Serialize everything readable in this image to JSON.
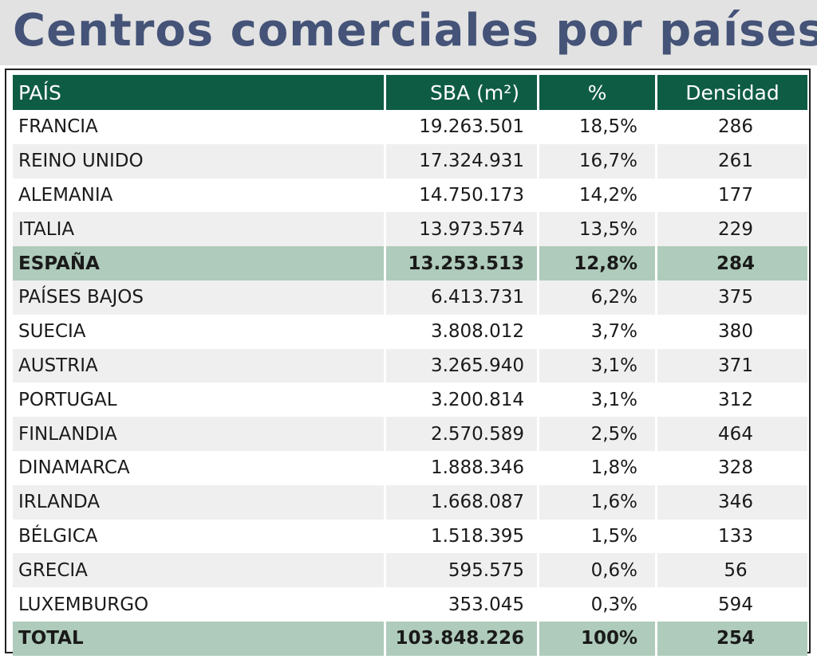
{
  "title": "Centros comerciales por países",
  "chart_data": {
    "type": "table",
    "columns": [
      "PAÍS",
      "SBA (m²)",
      "%",
      "Densidad"
    ],
    "rows": [
      {
        "pais": "FRANCIA",
        "sba": "19.263.501",
        "pct": "18,5%",
        "densidad": "286"
      },
      {
        "pais": "REINO UNIDO",
        "sba": "17.324.931",
        "pct": "16,7%",
        "densidad": "261"
      },
      {
        "pais": "ALEMANIA",
        "sba": "14.750.173",
        "pct": "14,2%",
        "densidad": "177"
      },
      {
        "pais": "ITALIA",
        "sba": "13.973.574",
        "pct": "13,5%",
        "densidad": "229"
      },
      {
        "pais": "ESPAÑA",
        "sba": "13.253.513",
        "pct": "12,8%",
        "densidad": "284",
        "highlight": true
      },
      {
        "pais": "PAÍSES BAJOS",
        "sba": "6.413.731",
        "pct": "6,2%",
        "densidad": "375"
      },
      {
        "pais": "SUECIA",
        "sba": "3.808.012",
        "pct": "3,7%",
        "densidad": "380"
      },
      {
        "pais": "AUSTRIA",
        "sba": "3.265.940",
        "pct": "3,1%",
        "densidad": "371"
      },
      {
        "pais": "PORTUGAL",
        "sba": "3.200.814",
        "pct": "3,1%",
        "densidad": "312"
      },
      {
        "pais": "FINLANDIA",
        "sba": "2.570.589",
        "pct": "2,5%",
        "densidad": "464"
      },
      {
        "pais": "DINAMARCA",
        "sba": "1.888.346",
        "pct": "1,8%",
        "densidad": "328"
      },
      {
        "pais": "IRLANDA",
        "sba": "1.668.087",
        "pct": "1,6%",
        "densidad": "346"
      },
      {
        "pais": "BÉLGICA",
        "sba": "1.518.395",
        "pct": "1,5%",
        "densidad": "133"
      },
      {
        "pais": "GRECIA",
        "sba": "595.575",
        "pct": "0,6%",
        "densidad": "56"
      },
      {
        "pais": "LUXEMBURGO",
        "sba": "353.045",
        "pct": "0,3%",
        "densidad": "594"
      }
    ],
    "total": {
      "pais": "TOTAL",
      "sba": "103.848.226",
      "pct": "100%",
      "densidad": "254"
    }
  },
  "colors": {
    "header_bg": "#0f5c45",
    "highlight_bg": "#afcbbb",
    "title_text": "#445377",
    "title_band": "#e2e2e2",
    "stripe": "#efefef"
  }
}
